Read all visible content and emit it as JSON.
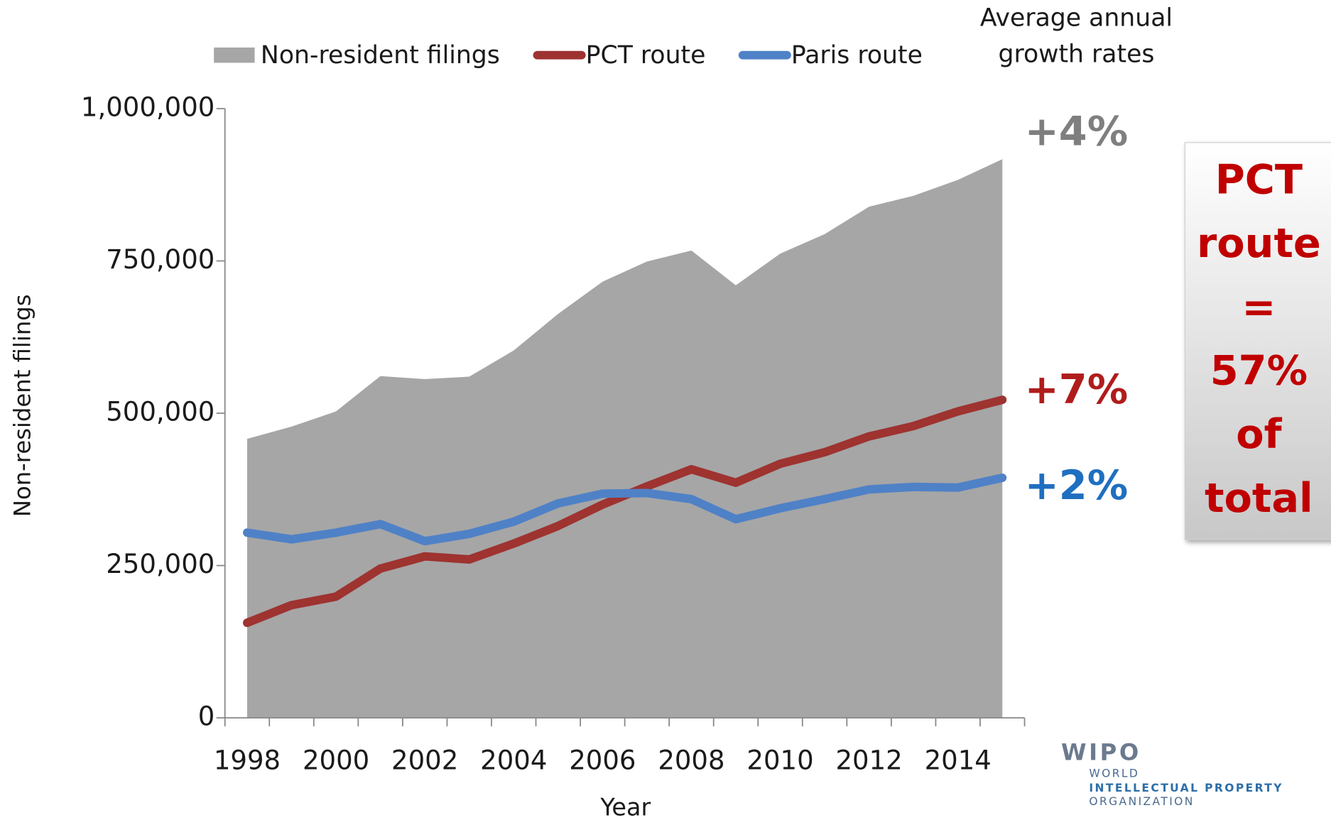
{
  "chart_data": {
    "type": "area_line",
    "legend": [
      "Non-resident filings",
      "PCT route",
      "Paris route"
    ],
    "categories": [
      "1998",
      null,
      "2000",
      null,
      "2002",
      null,
      "2004",
      null,
      "2006",
      null,
      "2008",
      null,
      "2010",
      null,
      "2012",
      null,
      "2014",
      null
    ],
    "series": [
      {
        "name": "Non-resident filings",
        "color": "#a6a6a6",
        "kind": "area",
        "values": [
          458000,
          478000,
          503000,
          561000,
          556000,
          560000,
          603000,
          663000,
          716000,
          749000,
          767000,
          710000,
          762000,
          794000,
          839000,
          857000,
          883000,
          917000
        ]
      },
      {
        "name": "PCT route",
        "color": "#9e3330",
        "kind": "line",
        "values": [
          156000,
          185000,
          199000,
          245000,
          265000,
          260000,
          286000,
          315000,
          350000,
          380000,
          408000,
          386000,
          417000,
          436000,
          462000,
          479000,
          503000,
          522000
        ]
      },
      {
        "name": "Paris route",
        "color": "#4f81c7",
        "kind": "line",
        "values": [
          304000,
          293000,
          304000,
          318000,
          290000,
          302000,
          322000,
          352000,
          368000,
          369000,
          359000,
          326000,
          344000,
          359000,
          375000,
          379000,
          378000,
          394000
        ]
      }
    ],
    "ylim": [
      0,
      1000000
    ],
    "yticks": [
      0,
      {
        "value": 250000,
        "label": "250,000"
      },
      {
        "value": 500000,
        "label": "500,000"
      },
      {
        "value": 750000,
        "label": "750,000"
      },
      {
        "value": 1000000,
        "label": "1,000,000"
      }
    ],
    "y_label": "Non-resident filings",
    "x_label": "Year",
    "rates_title": [
      "Average annual",
      "growth rates"
    ],
    "annotations": [
      {
        "text": "+4%",
        "color": "#7f7f7f"
      },
      {
        "text": "+7%",
        "color": "#b01c1c"
      },
      {
        "text": "+2%",
        "color": "#1f6fc0"
      }
    ],
    "callout": [
      "PCT",
      "route",
      "=",
      "57%",
      "of",
      "total"
    ],
    "logo": {
      "name": "WIPO",
      "lines": [
        "WORLD",
        "INTELLECTUAL PROPERTY",
        "ORGANIZATION"
      ]
    }
  }
}
